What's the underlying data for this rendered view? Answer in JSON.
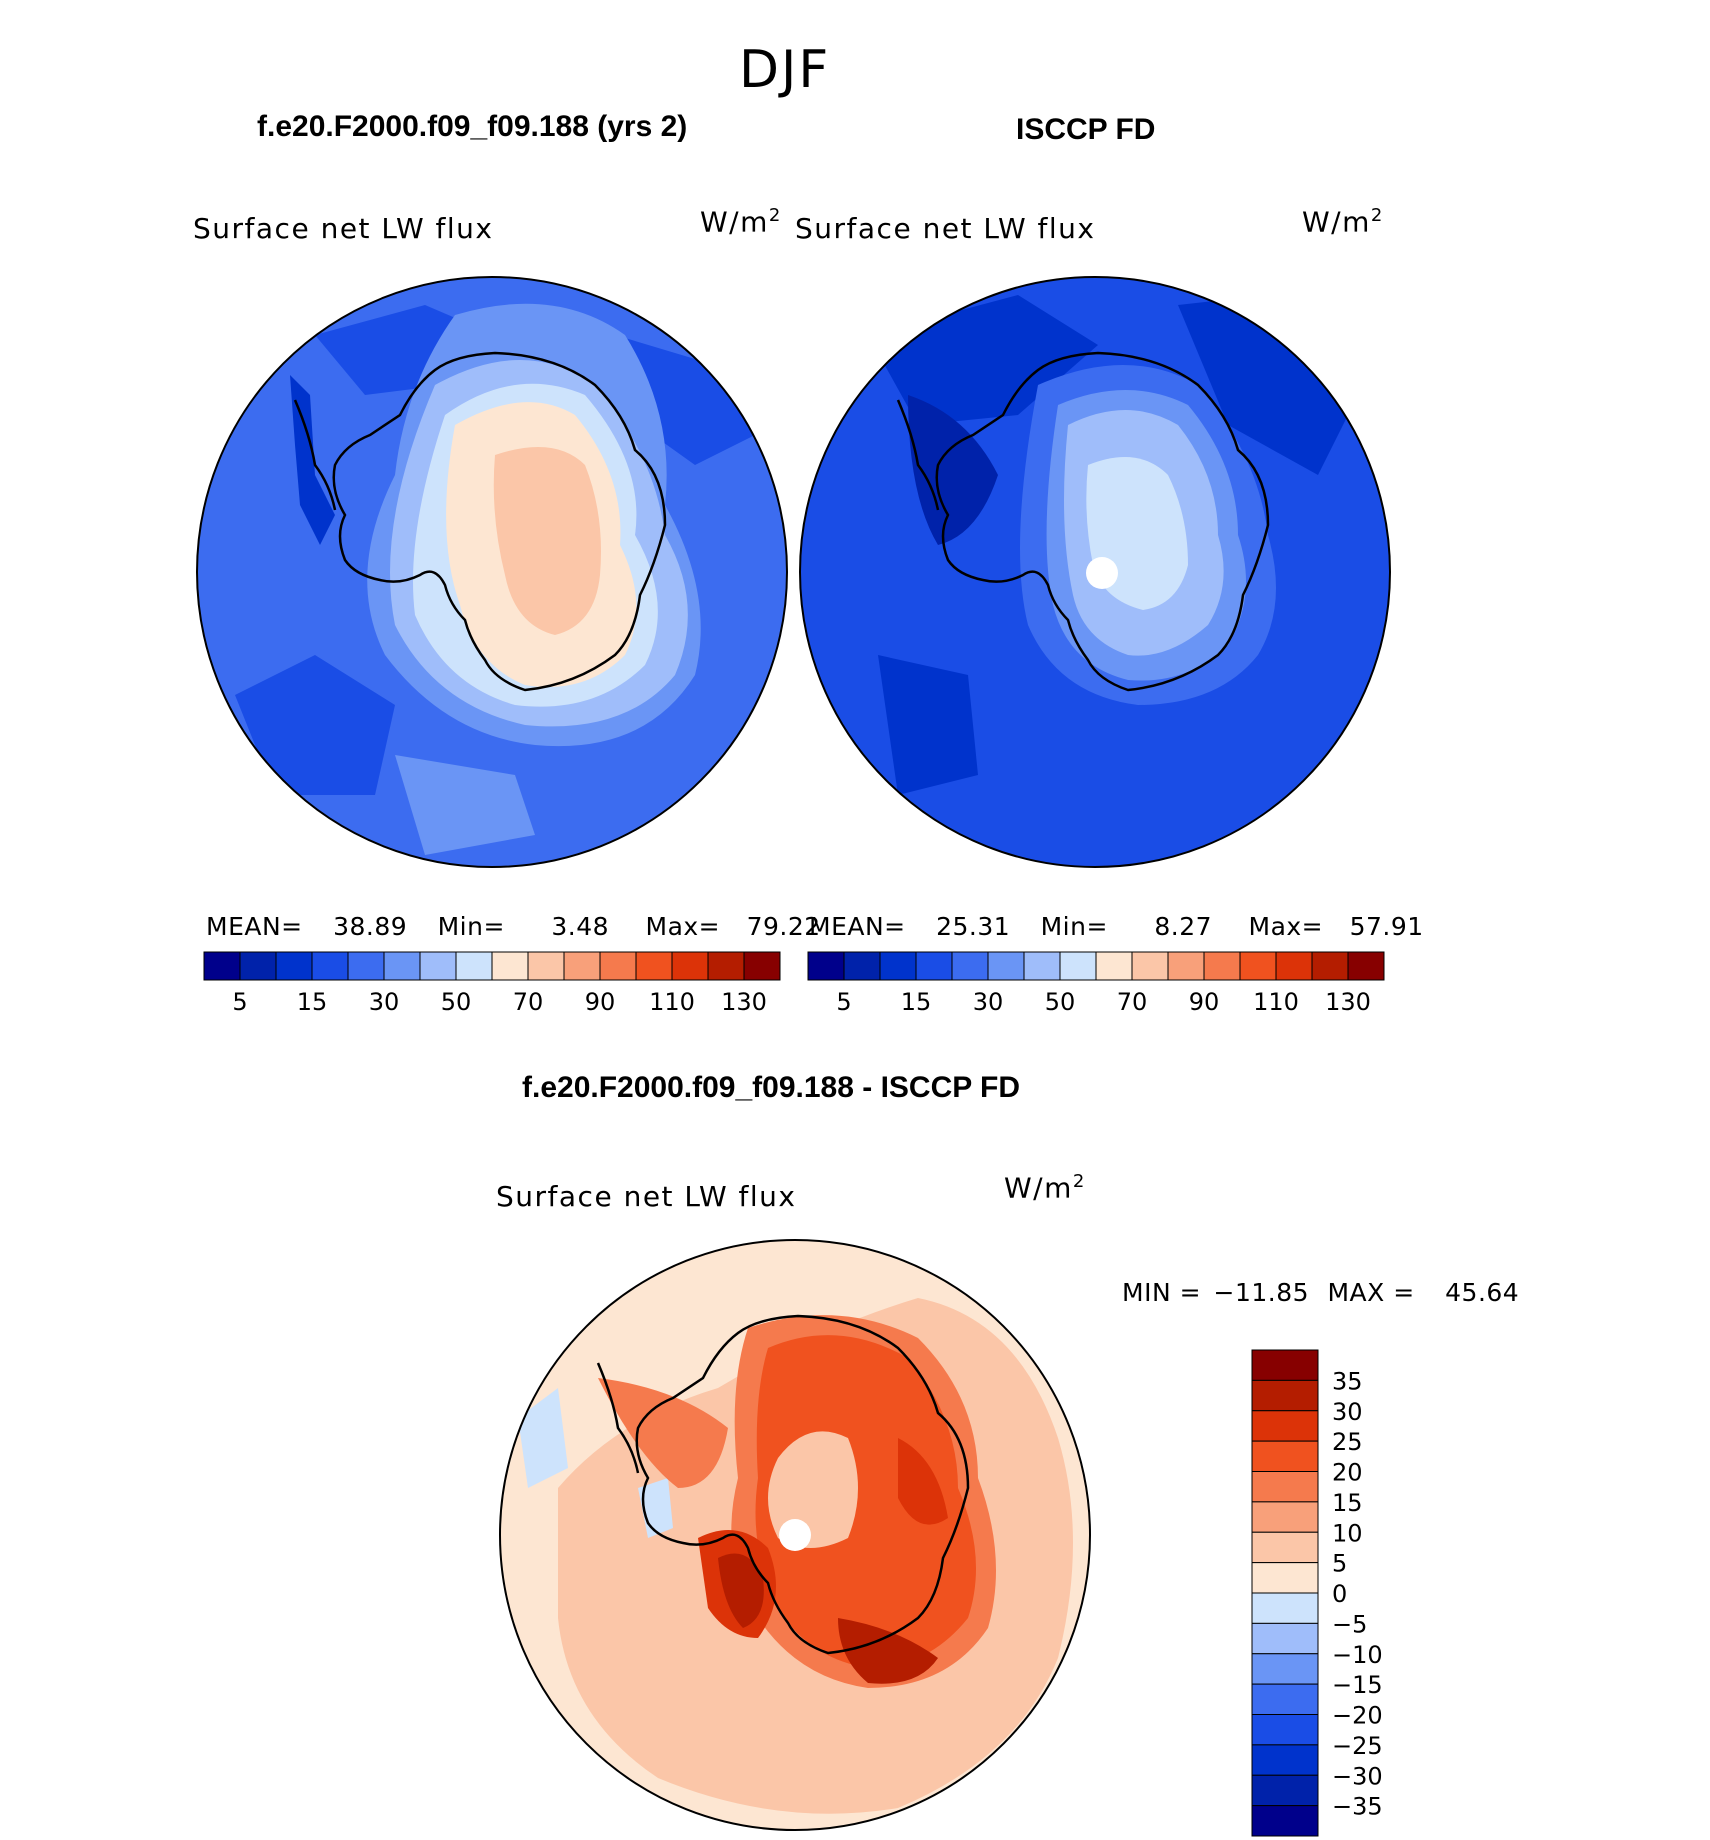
{
  "season": "DJF",
  "panels": [
    {
      "title": "f.e20.F2000.f09_f09.188 (yrs 2)",
      "variable": "Surface net LW flux",
      "units": "W/m",
      "units_sup": "2",
      "stats": {
        "mean_label": "MEAN=",
        "mean": "38.89",
        "min_label": "Min=",
        "min": "3.48",
        "max_label": "Max=",
        "max": "79.22"
      }
    },
    {
      "title": "ISCCP FD",
      "variable": "Surface net LW flux",
      "units": "W/m",
      "units_sup": "2",
      "stats": {
        "mean_label": "MEAN=",
        "mean": "25.31",
        "min_label": "Min=",
        "min": "8.27",
        "max_label": "Max=",
        "max": "57.91"
      }
    }
  ],
  "diff": {
    "title": "f.e20.F2000.f09_f09.188 - ISCCP FD",
    "variable": "Surface net LW flux",
    "units": "W/m",
    "units_sup": "2",
    "minmax": {
      "min_label": "MIN =",
      "min": "−11.85",
      "max_label": "MAX =",
      "max": "45.64"
    }
  },
  "abs_colorbar": {
    "colors": [
      "#00008b",
      "#0022aa",
      "#0033cc",
      "#1a4de6",
      "#3c6cf0",
      "#6a95f5",
      "#9fbdfa",
      "#cde3fc",
      "#fde6d2",
      "#fbc6a8",
      "#f8a07a",
      "#f57a4d",
      "#f0521f",
      "#dc3308",
      "#b41d00",
      "#870000"
    ],
    "tick_labels": [
      "5",
      "15",
      "30",
      "50",
      "70",
      "90",
      "110",
      "130"
    ]
  },
  "diff_colorbar": {
    "colors": [
      "#870000",
      "#b41d00",
      "#dc3308",
      "#f0521f",
      "#f57a4d",
      "#f8a07a",
      "#fbc6a8",
      "#fde6d2",
      "#cde3fc",
      "#9fbdfa",
      "#6a95f5",
      "#3c6cf0",
      "#1a4de6",
      "#0033cc",
      "#0022aa",
      "#00008b"
    ],
    "tick_labels": [
      "35",
      "30",
      "25",
      "20",
      "15",
      "10",
      "5",
      "0",
      "−5",
      "−10",
      "−15",
      "−20",
      "−25",
      "−30",
      "−35"
    ]
  }
}
